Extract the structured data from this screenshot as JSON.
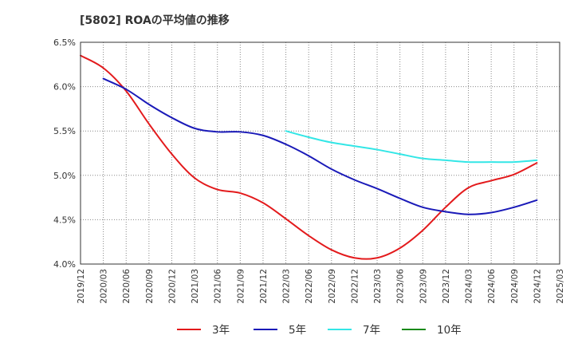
{
  "chart_data": {
    "type": "line",
    "title": "[5802]  ROAの平均値の推移",
    "xlabel": "",
    "ylabel": "",
    "ylim": [
      4.0,
      6.5
    ],
    "y_ticks": [
      "4.0%",
      "4.5%",
      "5.0%",
      "5.5%",
      "6.0%",
      "6.5%"
    ],
    "y_tick_values": [
      4.0,
      4.5,
      5.0,
      5.5,
      6.0,
      6.5
    ],
    "x": [
      "2019/12",
      "2020/03",
      "2020/06",
      "2020/09",
      "2020/12",
      "2021/03",
      "2021/06",
      "2021/09",
      "2021/12",
      "2022/03",
      "2022/06",
      "2022/09",
      "2022/12",
      "2023/03",
      "2023/06",
      "2023/09",
      "2023/12",
      "2024/03",
      "2024/06",
      "2024/09",
      "2024/12",
      "2025/03"
    ],
    "grid": "horizontal",
    "legend_placement": "bottom",
    "series": [
      {
        "name": "3年",
        "color": "#e31a1c",
        "values": [
          6.35,
          6.21,
          5.95,
          5.58,
          5.24,
          4.97,
          4.84,
          4.8,
          4.69,
          4.51,
          4.32,
          4.16,
          4.07,
          4.07,
          4.18,
          4.38,
          4.64,
          4.86,
          4.94,
          5.01,
          5.14,
          null
        ]
      },
      {
        "name": "5年",
        "color": "#1a1ab8",
        "values": [
          null,
          6.09,
          5.97,
          5.8,
          5.65,
          5.53,
          5.49,
          5.49,
          5.45,
          5.35,
          5.22,
          5.07,
          4.95,
          4.85,
          4.74,
          4.64,
          4.59,
          4.56,
          4.58,
          4.64,
          4.72,
          null
        ]
      },
      {
        "name": "7年",
        "color": "#33e6e6",
        "values": [
          null,
          null,
          null,
          null,
          null,
          null,
          null,
          null,
          null,
          5.5,
          5.43,
          5.37,
          5.33,
          5.29,
          5.24,
          5.19,
          5.17,
          5.15,
          5.15,
          5.15,
          5.17,
          null
        ]
      },
      {
        "name": "10年",
        "color": "#1a8a1a",
        "values": [
          null,
          null,
          null,
          null,
          null,
          null,
          null,
          null,
          null,
          null,
          null,
          null,
          null,
          null,
          null,
          null,
          null,
          null,
          null,
          null,
          null,
          null
        ]
      }
    ]
  }
}
